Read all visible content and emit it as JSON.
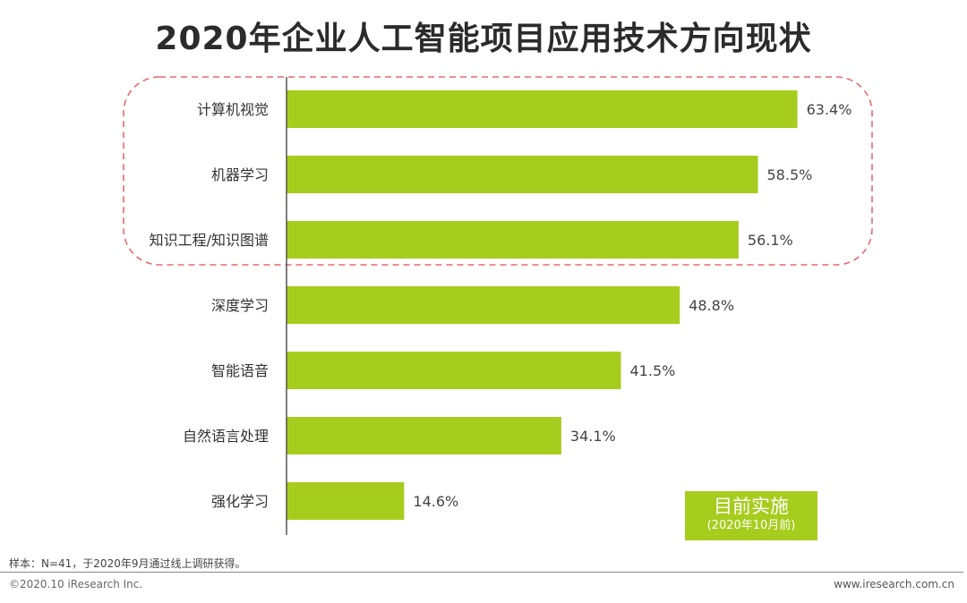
{
  "title": "2020年企业人工智能项目应用技术方向现状",
  "chart_data": {
    "type": "bar",
    "orientation": "horizontal",
    "categories": [
      "计算机视觉",
      "机器学习",
      "知识工程/知识图谱",
      "深度学习",
      "智能语音",
      "自然语言处理",
      "强化学习"
    ],
    "values": [
      63.4,
      58.5,
      56.1,
      48.8,
      41.5,
      34.1,
      14.6
    ],
    "value_labels": [
      "63.4%",
      "58.5%",
      "56.1%",
      "48.8%",
      "41.5%",
      "34.1%",
      "14.6%"
    ],
    "bar_color": "#a6cd1d",
    "highlight_color": "#e8696f",
    "highlighted_categories": [
      "计算机视觉",
      "机器学习",
      "知识工程/知识图谱"
    ],
    "grid": false
  },
  "legend": {
    "label": "目前实施",
    "sublabel": "(2020年10月前)",
    "placement": "bottom-right"
  },
  "footnote": "样本：N=41，于2020年9月通过线上调研获得。",
  "copyright": "©2020.10 iResearch Inc.",
  "website": "www.iresearch.com.cn"
}
